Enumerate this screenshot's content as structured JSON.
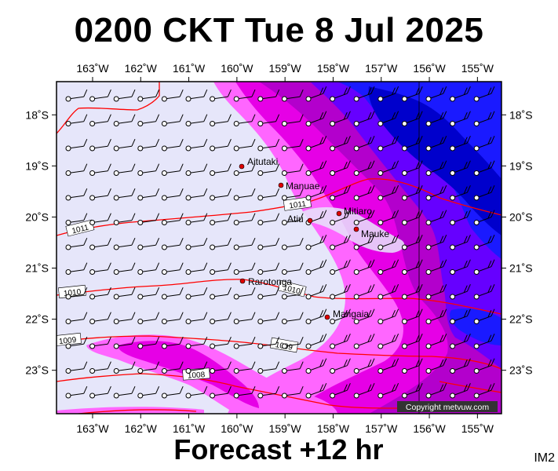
{
  "title": "0200 CKT Tue 8 Jul 2025",
  "footer": "Forecast +12 hr",
  "image_code": "IM2",
  "copyright": "Copyright metvuw.com",
  "map": {
    "lon_range": [
      -163.75,
      -154.5
    ],
    "lat_range": [
      -23.85,
      -17.35
    ],
    "lon_ticks": [
      -163,
      -162,
      -161,
      -160,
      -159,
      -158,
      -157,
      -156,
      -155
    ],
    "lon_tick_labels": [
      "163˚W",
      "162˚W",
      "161˚W",
      "160˚W",
      "159˚W",
      "158˚W",
      "157˚W",
      "156˚W",
      "155˚W"
    ],
    "lat_ticks": [
      -18,
      -19,
      -20,
      -21,
      -22,
      -23
    ],
    "lat_tick_labels": [
      "18˚S",
      "19˚S",
      "20˚S",
      "21˚S",
      "22˚S",
      "23˚S"
    ],
    "background_color": "#e6e6fa",
    "rain_colors": [
      "#ffd6ff",
      "#ff66ff",
      "#e600e6",
      "#b300cc",
      "#6600ff",
      "#1a1aff",
      "#0000cc"
    ],
    "isobar_color": "#ff0000",
    "isobar_labels": [
      "1011",
      "1011",
      "1010",
      "1010",
      "1009",
      "1009",
      "1008"
    ],
    "places": [
      {
        "name": "Aitutaki",
        "lon": -159.78,
        "lat": -18.86
      },
      {
        "name": "Manuae",
        "lon": -158.96,
        "lat": -19.26
      },
      {
        "name": "Atiu",
        "lon": -158.12,
        "lat": -19.99
      },
      {
        "name": "Mitiaro",
        "lon": -157.7,
        "lat": -19.87
      },
      {
        "name": "Mauke",
        "lon": -157.34,
        "lat": -20.15
      },
      {
        "name": "Rarotonga",
        "lon": -159.78,
        "lat": -21.23
      },
      {
        "name": "Mangaia",
        "lon": -157.92,
        "lat": -21.93
      }
    ],
    "wind_barbs": "station circles with barbs, wind from the east to southeast"
  }
}
